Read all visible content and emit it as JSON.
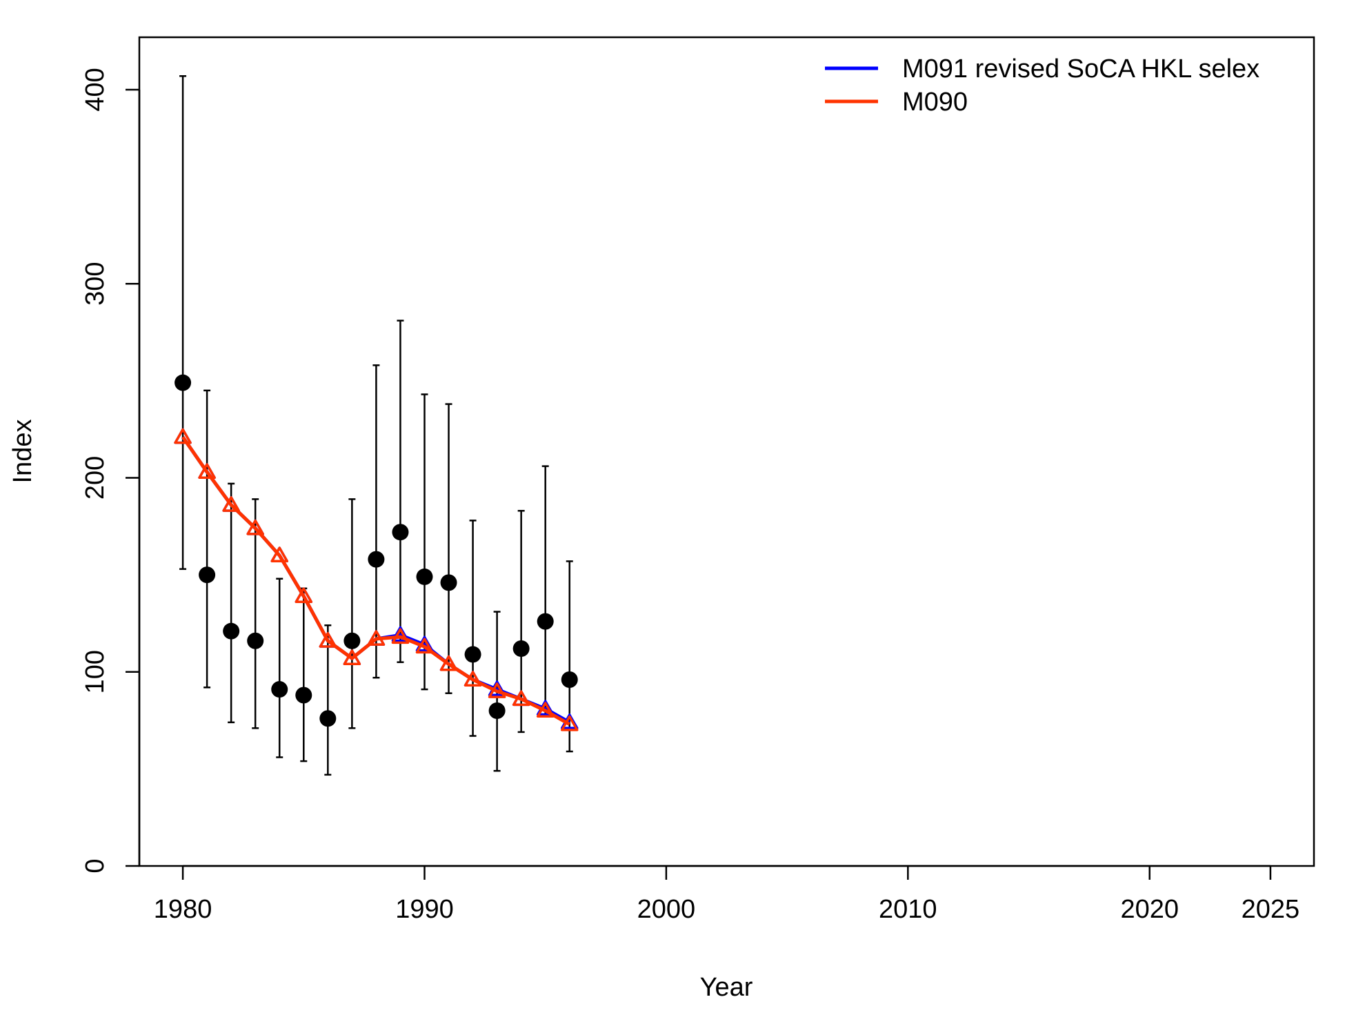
{
  "chart_data": {
    "type": "line",
    "xlabel": "Year",
    "ylabel": "Index",
    "xlim": [
      1978.2,
      2026.8
    ],
    "ylim": [
      0,
      427
    ],
    "x_ticks": [
      1980,
      1990,
      2000,
      2010,
      2020,
      2025
    ],
    "y_ticks": [
      0,
      100,
      200,
      300,
      400
    ],
    "grid": false,
    "legend_position": "top-right",
    "observed": {
      "years": [
        1980,
        1981,
        1982,
        1983,
        1984,
        1985,
        1986,
        1987,
        1988,
        1989,
        1990,
        1991,
        1992,
        1993,
        1994,
        1995,
        1996
      ],
      "values": [
        249,
        150,
        121,
        116,
        91,
        88,
        76,
        116,
        158,
        172,
        149,
        146,
        109,
        80,
        112,
        126,
        96
      ],
      "lower": [
        153,
        92,
        74,
        71,
        56,
        54,
        47,
        71,
        97,
        105,
        91,
        89,
        67,
        49,
        69,
        77,
        59
      ],
      "upper": [
        407,
        245,
        197,
        189,
        148,
        143,
        124,
        189,
        258,
        281,
        243,
        238,
        178,
        131,
        183,
        206,
        157
      ]
    },
    "series": [
      {
        "name": "M091 revised SoCA HKL selex",
        "color": "#0000ff",
        "years": [
          1980,
          1981,
          1982,
          1983,
          1984,
          1985,
          1986,
          1987,
          1988,
          1989,
          1990,
          1991,
          1992,
          1993,
          1994,
          1995,
          1996
        ],
        "values": [
          221,
          203,
          186,
          174,
          160,
          139,
          116,
          107,
          117,
          119,
          114,
          104,
          96,
          91,
          86,
          81,
          74
        ]
      },
      {
        "name": "M090",
        "color": "#ff3300",
        "years": [
          1980,
          1981,
          1982,
          1983,
          1984,
          1985,
          1986,
          1987,
          1988,
          1989,
          1990,
          1991,
          1992,
          1993,
          1994,
          1995,
          1996
        ],
        "values": [
          221,
          203,
          186,
          174,
          160,
          139,
          116,
          107,
          117,
          118,
          113,
          104,
          96,
          90,
          86,
          80,
          73
        ]
      }
    ]
  }
}
